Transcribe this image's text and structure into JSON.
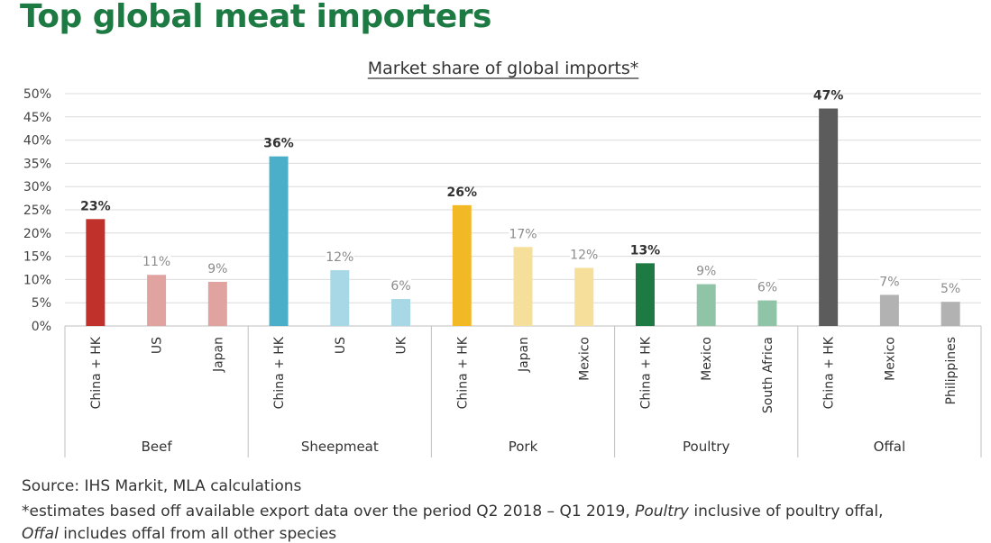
{
  "title": "Top global meat importers",
  "chart_data": {
    "type": "bar",
    "title": "Market share of global imports*",
    "ylim": [
      0,
      50
    ],
    "yticks": [
      "0%",
      "5%",
      "10%",
      "15%",
      "20%",
      "25%",
      "30%",
      "35%",
      "40%",
      "45%",
      "50%"
    ],
    "grid": true,
    "groups": [
      {
        "name": "Beef",
        "bars": [
          {
            "category": "China + HK",
            "value": 23,
            "label": "23%",
            "color": "#c0312b",
            "emphasis": true
          },
          {
            "category": "US",
            "value": 11,
            "label": "11%",
            "color": "#e0a3a0",
            "emphasis": false
          },
          {
            "category": "Japan",
            "value": 9.5,
            "label": "9%",
            "color": "#e0a3a0",
            "emphasis": false
          }
        ]
      },
      {
        "name": "Sheepmeat",
        "bars": [
          {
            "category": "China + HK",
            "value": 36.5,
            "label": "36%",
            "color": "#4bafc9",
            "emphasis": true
          },
          {
            "category": "US",
            "value": 12,
            "label": "12%",
            "color": "#a8d8e6",
            "emphasis": false
          },
          {
            "category": "UK",
            "value": 5.8,
            "label": "6%",
            "color": "#a8d8e6",
            "emphasis": false
          }
        ]
      },
      {
        "name": "Pork",
        "bars": [
          {
            "category": "China + HK",
            "value": 26,
            "label": "26%",
            "color": "#f2b825",
            "emphasis": true
          },
          {
            "category": "Japan",
            "value": 17,
            "label": "17%",
            "color": "#f6df9b",
            "emphasis": false
          },
          {
            "category": "Mexico",
            "value": 12.5,
            "label": "12%",
            "color": "#f6df9b",
            "emphasis": false
          }
        ]
      },
      {
        "name": "Poultry",
        "bars": [
          {
            "category": "China + HK",
            "value": 13.5,
            "label": "13%",
            "color": "#1e7a43",
            "emphasis": true
          },
          {
            "category": "Mexico",
            "value": 9,
            "label": "9%",
            "color": "#8fc4a6",
            "emphasis": false
          },
          {
            "category": "South Africa",
            "value": 5.5,
            "label": "6%",
            "color": "#8fc4a6",
            "emphasis": false
          }
        ]
      },
      {
        "name": "Offal",
        "bars": [
          {
            "category": "China + HK",
            "value": 46.8,
            "label": "47%",
            "color": "#5c5c5c",
            "emphasis": true
          },
          {
            "category": "Mexico",
            "value": 6.7,
            "label": "7%",
            "color": "#b2b2b2",
            "emphasis": false
          },
          {
            "category": "Philippines",
            "value": 5.2,
            "label": "5%",
            "color": "#b2b2b2",
            "emphasis": false
          }
        ]
      }
    ]
  },
  "footer": {
    "source": "Source: IHS Markit, MLA calculations",
    "note_part1": "*estimates based off available export data over the period Q2 2018 – Q1 2019, ",
    "note_em1": "Poultry",
    "note_part2": " inclusive of poultry offal,",
    "note_em2": "Offal",
    "note_part3": " includes offal from all other species"
  }
}
